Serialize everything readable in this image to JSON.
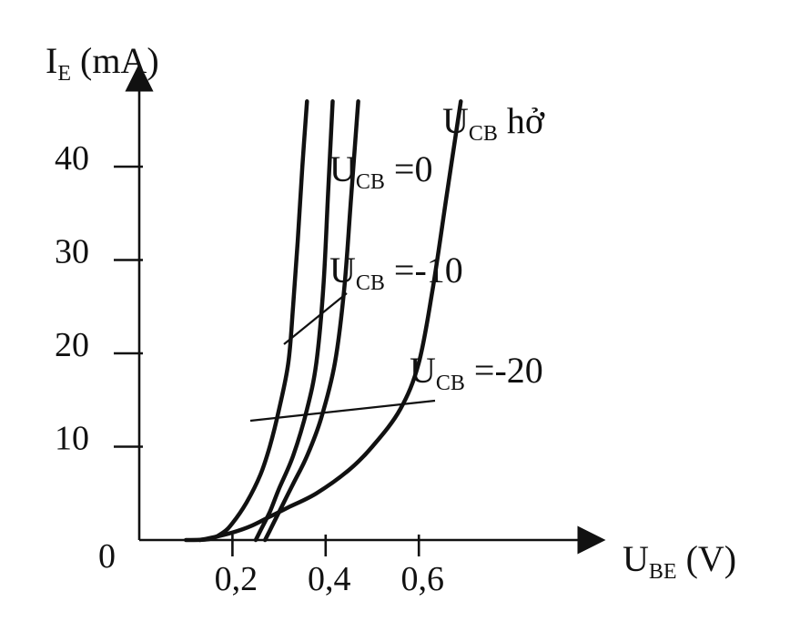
{
  "chart_data": {
    "type": "line",
    "y_axis": {
      "label_main": "I",
      "label_sub": "E",
      "label_unit": " (mA)",
      "range": [
        0,
        47
      ],
      "ticks": [
        0,
        10,
        20,
        30,
        40
      ],
      "tick_labels": [
        "0",
        "10",
        "20",
        "30",
        "40"
      ]
    },
    "x_axis": {
      "label_main": "U",
      "label_sub": "BE",
      "label_unit": " (V)",
      "range": [
        0,
        0.8
      ],
      "ticks": [
        0.2,
        0.4,
        0.6
      ],
      "tick_labels": [
        "0,2",
        "0,4",
        "0,6"
      ]
    },
    "series": [
      {
        "label_main": "U",
        "label_sub": "CB",
        "label_rest": " hở",
        "points": [
          [
            0.13,
            0
          ],
          [
            0.16,
            0.3
          ],
          [
            0.2,
            0.8
          ],
          [
            0.24,
            1.5
          ],
          [
            0.28,
            2.5
          ],
          [
            0.32,
            3.5
          ],
          [
            0.38,
            5
          ],
          [
            0.45,
            7.5
          ],
          [
            0.5,
            10
          ],
          [
            0.56,
            14
          ],
          [
            0.6,
            19
          ],
          [
            0.63,
            27
          ],
          [
            0.66,
            37
          ],
          [
            0.69,
            47
          ]
        ]
      },
      {
        "label_main": "U",
        "label_sub": "CB",
        "label_rest": " =0",
        "points": [
          [
            0.27,
            0
          ],
          [
            0.28,
            1
          ],
          [
            0.3,
            3
          ],
          [
            0.33,
            6
          ],
          [
            0.36,
            9
          ],
          [
            0.39,
            13
          ],
          [
            0.42,
            19
          ],
          [
            0.44,
            27
          ],
          [
            0.455,
            37
          ],
          [
            0.47,
            47
          ]
        ]
      },
      {
        "label_main": "U",
        "label_sub": "CB",
        "label_rest": " =-10",
        "points": [
          [
            0.25,
            0
          ],
          [
            0.26,
            1
          ],
          [
            0.28,
            3
          ],
          [
            0.3,
            5.5
          ],
          [
            0.33,
            9
          ],
          [
            0.36,
            14
          ],
          [
            0.38,
            19
          ],
          [
            0.395,
            27
          ],
          [
            0.405,
            37
          ],
          [
            0.415,
            47
          ]
        ]
      },
      {
        "label_main": "U",
        "label_sub": "CB",
        "label_rest": " =-20",
        "points": [
          [
            0.1,
            0
          ],
          [
            0.15,
            0.1
          ],
          [
            0.18,
            0.8
          ],
          [
            0.2,
            1.8
          ],
          [
            0.23,
            4
          ],
          [
            0.26,
            7
          ],
          [
            0.28,
            10
          ],
          [
            0.3,
            14
          ],
          [
            0.32,
            19
          ],
          [
            0.33,
            25
          ],
          [
            0.34,
            32
          ],
          [
            0.35,
            40
          ],
          [
            0.36,
            47
          ]
        ]
      }
    ],
    "grid": false
  }
}
